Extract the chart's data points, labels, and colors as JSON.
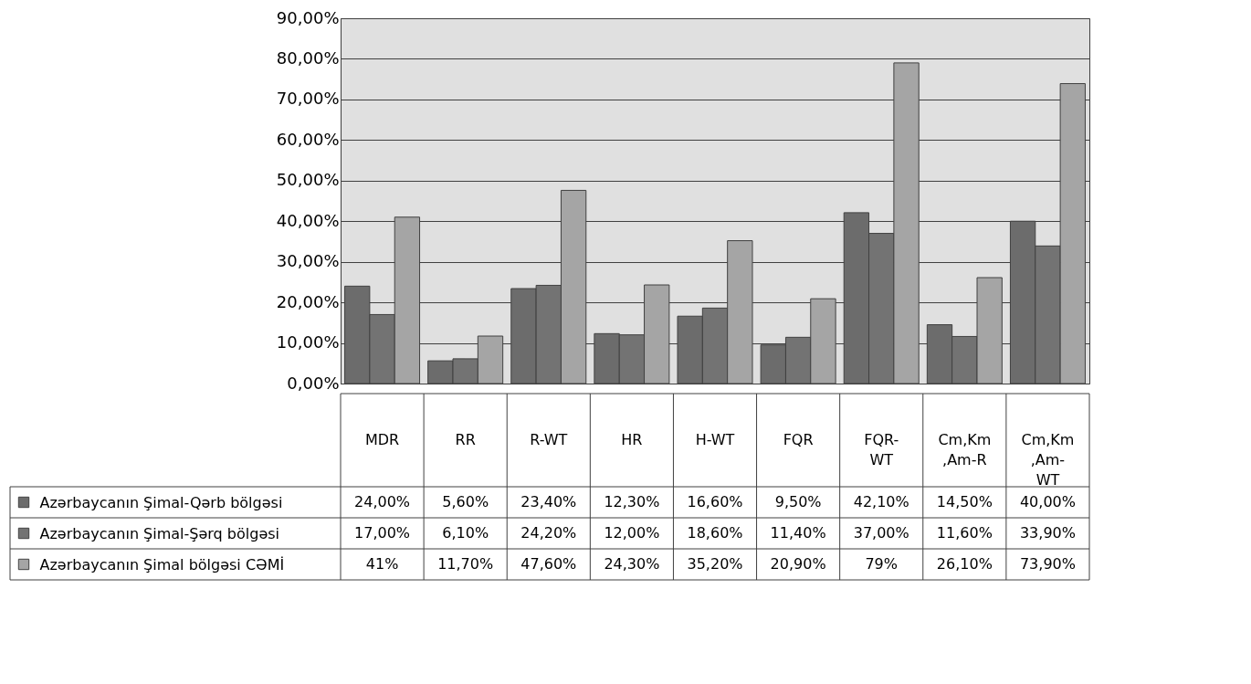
{
  "chart_data": {
    "type": "bar",
    "categories": [
      "MDR",
      "RR",
      "R-WT",
      "HR",
      "H-WT",
      "FQR",
      "FQR-WT",
      "Cm,Km,Am-R",
      "Cm,Km,Am-WT"
    ],
    "series": [
      {
        "name": "Azərbaycanın Şimal-Qərb bölgəsi",
        "color": "#6c6c6c",
        "values": [
          24.0,
          5.6,
          23.4,
          12.3,
          16.6,
          9.5,
          42.1,
          14.5,
          40.0
        ],
        "value_labels": [
          "24,00%",
          "5,60%",
          "23,40%",
          "12,30%",
          "16,60%",
          "9,50%",
          "42,10%",
          "14,50%",
          "40,00%"
        ]
      },
      {
        "name": "Azərbaycanın Şimal-Şərq bölgəsi",
        "color": "#737373",
        "values": [
          17.0,
          6.1,
          24.2,
          12.0,
          18.6,
          11.4,
          37.0,
          11.6,
          33.9
        ],
        "value_labels": [
          "17,00%",
          "6,10%",
          "24,20%",
          "12,00%",
          "18,60%",
          "11,40%",
          "37,00%",
          "11,60%",
          "33,90%"
        ]
      },
      {
        "name": "Azərbaycanın Şimal bölgəsi CƏMİ",
        "color": "#a5a5a5",
        "values": [
          41,
          11.7,
          47.6,
          24.3,
          35.2,
          20.9,
          79,
          26.1,
          73.9
        ],
        "value_labels": [
          "41%",
          "11,70%",
          "47,60%",
          "24,30%",
          "35,20%",
          "20,90%",
          "79%",
          "26,10%",
          "73,90%"
        ]
      }
    ],
    "ylim": [
      0,
      90
    ],
    "yticks": [
      {
        "value": 0,
        "label": "0,00%"
      },
      {
        "value": 10,
        "label": "10,00%"
      },
      {
        "value": 20,
        "label": "20,00%"
      },
      {
        "value": 30,
        "label": "30,00%"
      },
      {
        "value": 40,
        "label": "40,00%"
      },
      {
        "value": 50,
        "label": "50,00%"
      },
      {
        "value": 60,
        "label": "60,00%"
      },
      {
        "value": 70,
        "label": "70,00%"
      },
      {
        "value": 80,
        "label": "80,00%"
      },
      {
        "value": 90,
        "label": "90,00%"
      }
    ],
    "grid": "y",
    "legend": "bottom"
  }
}
